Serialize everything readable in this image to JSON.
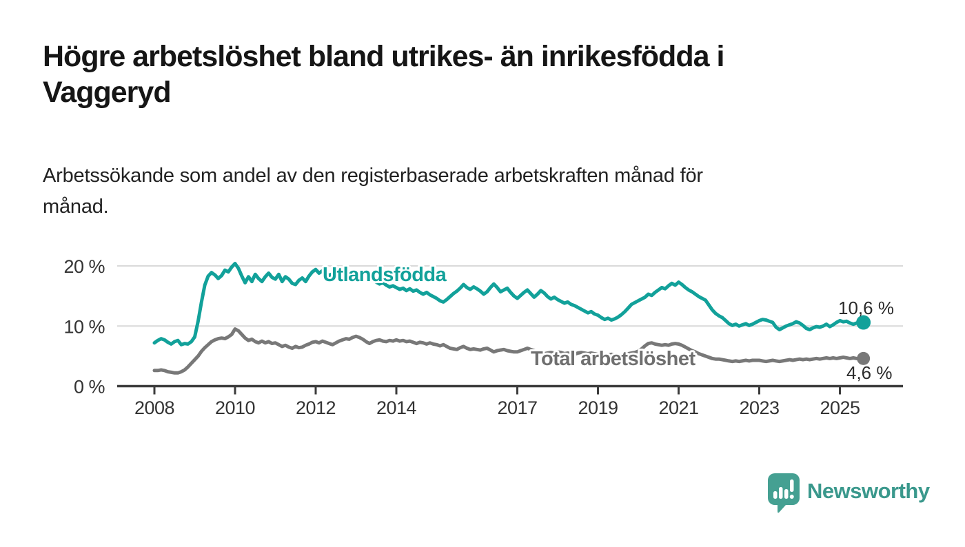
{
  "header": {
    "title_lines": [
      "Högre arbetslöshet bland utrikes- än inrikesfödda i",
      "Vaggeryd"
    ],
    "subtitle_lines": [
      "Arbetssökande som andel av den registerbaserade arbetskraften månad för",
      "månad."
    ]
  },
  "branding": {
    "name": "Newsworthy",
    "icon": "bar-chart-speech-bubble-icon",
    "icon_color": "#45a092",
    "text_color": "#3a988c"
  },
  "chart_data": {
    "type": "line",
    "title": "",
    "xlabel": "",
    "ylabel": "",
    "x_unit": "year-month",
    "x_start_year": 2008,
    "points_per_year": 12,
    "x_end": "2025-08",
    "ylim": [
      0,
      22
    ],
    "grid": "horizontal",
    "colors": {
      "axis": "#3c3c3c",
      "gridline": "#d9d9d9",
      "tick_label": "#333333",
      "end_value_label": "#2b2b2b"
    },
    "x_ticks": [
      {
        "value": 2008,
        "label": "2008"
      },
      {
        "value": 2010,
        "label": "2010"
      },
      {
        "value": 2012,
        "label": "2012"
      },
      {
        "value": 2014,
        "label": "2014"
      },
      {
        "value": 2017,
        "label": "2017"
      },
      {
        "value": 2019,
        "label": "2019"
      },
      {
        "value": 2021,
        "label": "2021"
      },
      {
        "value": 2023,
        "label": "2023"
      },
      {
        "value": 2025,
        "label": "2025"
      }
    ],
    "y_ticks": [
      {
        "value": 0,
        "label": "0 %"
      },
      {
        "value": 10,
        "label": "10 %"
      },
      {
        "value": 20,
        "label": "20 %"
      }
    ],
    "series": [
      {
        "name": "Utlandsfödda",
        "color": "#12a19a",
        "label_color": "#12a19a",
        "end_label": "10,6 %",
        "end_value": 10.6,
        "values": [
          7.2,
          7.6,
          7.9,
          7.7,
          7.3,
          7.0,
          7.4,
          7.6,
          6.9,
          7.1,
          7.0,
          7.4,
          8.2,
          10.8,
          14.0,
          16.8,
          18.3,
          18.9,
          18.5,
          17.9,
          18.4,
          19.3,
          19.0,
          19.8,
          20.4,
          19.6,
          18.3,
          17.2,
          18.2,
          17.4,
          18.6,
          17.9,
          17.4,
          18.2,
          18.8,
          18.1,
          17.8,
          18.6,
          17.4,
          18.2,
          17.8,
          17.1,
          16.9,
          17.6,
          18.0,
          17.4,
          18.3,
          19.0,
          19.4,
          18.8,
          19.2,
          18.9,
          18.4,
          18.7,
          18.9,
          18.3,
          17.9,
          18.4,
          18.0,
          17.7,
          18.1,
          18.5,
          18.2,
          17.8,
          17.5,
          17.7,
          17.3,
          17.0,
          17.2,
          16.8,
          16.5,
          16.7,
          16.4,
          16.1,
          16.3,
          15.9,
          16.2,
          15.8,
          16.0,
          15.6,
          15.3,
          15.6,
          15.2,
          14.9,
          14.6,
          14.2,
          14.0,
          14.4,
          14.9,
          15.4,
          15.8,
          16.3,
          16.9,
          16.4,
          16.1,
          16.5,
          16.2,
          15.8,
          15.3,
          15.7,
          16.4,
          17.0,
          16.4,
          15.7,
          16.0,
          16.3,
          15.6,
          15.0,
          14.6,
          15.1,
          15.6,
          16.0,
          15.4,
          14.8,
          15.3,
          15.9,
          15.5,
          14.9,
          14.5,
          14.8,
          14.4,
          14.1,
          13.8,
          14.0,
          13.6,
          13.4,
          13.1,
          12.8,
          12.5,
          12.2,
          12.4,
          12.0,
          11.8,
          11.4,
          11.1,
          11.3,
          11.0,
          11.2,
          11.5,
          11.9,
          12.4,
          13.0,
          13.6,
          13.9,
          14.2,
          14.5,
          14.8,
          15.3,
          15.1,
          15.6,
          16.0,
          16.4,
          16.2,
          16.7,
          17.1,
          16.8,
          17.3,
          16.9,
          16.4,
          16.0,
          15.7,
          15.3,
          14.9,
          14.6,
          14.3,
          13.5,
          12.7,
          12.1,
          11.7,
          11.4,
          10.9,
          10.4,
          10.1,
          10.3,
          10.0,
          10.2,
          10.4,
          10.1,
          10.3,
          10.6,
          10.9,
          11.1,
          11.0,
          10.8,
          10.6,
          9.8,
          9.4,
          9.7,
          10.0,
          10.2,
          10.4,
          10.7,
          10.5,
          10.1,
          9.6,
          9.4,
          9.7,
          9.9,
          9.8,
          10.0,
          10.3,
          9.9,
          10.2,
          10.6,
          10.9,
          10.7,
          10.8,
          10.5,
          10.3,
          10.5,
          10.4,
          10.6
        ]
      },
      {
        "name": "Total arbetslöshet",
        "color": "#787878",
        "label_color": "#6f6f6f",
        "end_label": "4,6 %",
        "end_value": 4.6,
        "values": [
          2.6,
          2.6,
          2.7,
          2.6,
          2.4,
          2.3,
          2.2,
          2.2,
          2.4,
          2.7,
          3.2,
          3.8,
          4.4,
          5.0,
          5.8,
          6.4,
          6.9,
          7.4,
          7.7,
          7.9,
          8.0,
          7.9,
          8.2,
          8.6,
          9.5,
          9.2,
          8.6,
          8.0,
          7.6,
          7.8,
          7.4,
          7.2,
          7.5,
          7.2,
          7.4,
          7.1,
          7.2,
          6.9,
          6.6,
          6.8,
          6.5,
          6.3,
          6.6,
          6.4,
          6.5,
          6.8,
          7.0,
          7.3,
          7.4,
          7.2,
          7.5,
          7.3,
          7.1,
          6.9,
          7.2,
          7.5,
          7.7,
          7.9,
          7.8,
          8.1,
          8.3,
          8.1,
          7.8,
          7.4,
          7.1,
          7.4,
          7.6,
          7.7,
          7.5,
          7.4,
          7.6,
          7.5,
          7.7,
          7.5,
          7.6,
          7.4,
          7.5,
          7.3,
          7.1,
          7.3,
          7.2,
          7.0,
          7.2,
          7.0,
          6.9,
          6.7,
          6.9,
          6.6,
          6.3,
          6.2,
          6.1,
          6.4,
          6.6,
          6.3,
          6.1,
          6.2,
          6.1,
          6.0,
          6.2,
          6.3,
          6.0,
          5.7,
          5.9,
          6.0,
          6.1,
          5.9,
          5.8,
          5.7,
          5.7,
          5.9,
          6.1,
          6.3,
          6.1,
          5.9,
          5.7,
          5.5,
          5.4,
          5.5,
          5.6,
          5.5,
          5.7,
          5.6,
          5.4,
          5.5,
          5.4,
          5.3,
          5.5,
          5.6,
          5.5,
          5.4,
          5.5,
          5.4,
          5.3,
          5.4,
          5.3,
          5.2,
          5.3,
          5.2,
          5.1,
          5.2,
          5.3,
          5.4,
          5.5,
          5.6,
          5.8,
          6.2,
          6.7,
          7.1,
          7.2,
          7.0,
          6.9,
          6.8,
          6.9,
          6.8,
          7.0,
          7.1,
          7.0,
          6.8,
          6.5,
          6.2,
          5.9,
          5.7,
          5.4,
          5.2,
          5.0,
          4.8,
          4.6,
          4.5,
          4.5,
          4.4,
          4.3,
          4.2,
          4.1,
          4.2,
          4.1,
          4.2,
          4.3,
          4.2,
          4.3,
          4.3,
          4.3,
          4.2,
          4.1,
          4.2,
          4.3,
          4.2,
          4.1,
          4.2,
          4.3,
          4.4,
          4.3,
          4.4,
          4.5,
          4.4,
          4.5,
          4.4,
          4.5,
          4.6,
          4.5,
          4.6,
          4.7,
          4.6,
          4.7,
          4.6,
          4.7,
          4.8,
          4.7,
          4.6,
          4.7,
          4.6,
          4.5,
          4.6
        ]
      }
    ]
  }
}
